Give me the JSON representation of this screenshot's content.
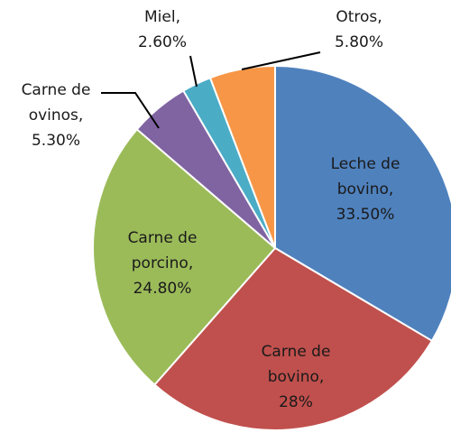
{
  "chart_data": {
    "type": "pie",
    "categories": [
      "Leche de bovino,",
      "Carne de bovino,",
      "Carne de porcino,",
      "Carne de ovinos,",
      "Miel,",
      "Otros,"
    ],
    "values": [
      33.5,
      28,
      24.8,
      5.3,
      2.6,
      5.8
    ],
    "value_labels": [
      "33.50%",
      "28%",
      "24.80%",
      "5.30%",
      "2.60%",
      "5.80%"
    ],
    "colors": [
      "#4f81bd",
      "#c0504d",
      "#9bbb59",
      "#8064a2",
      "#4bacc6",
      "#f79646"
    ]
  }
}
